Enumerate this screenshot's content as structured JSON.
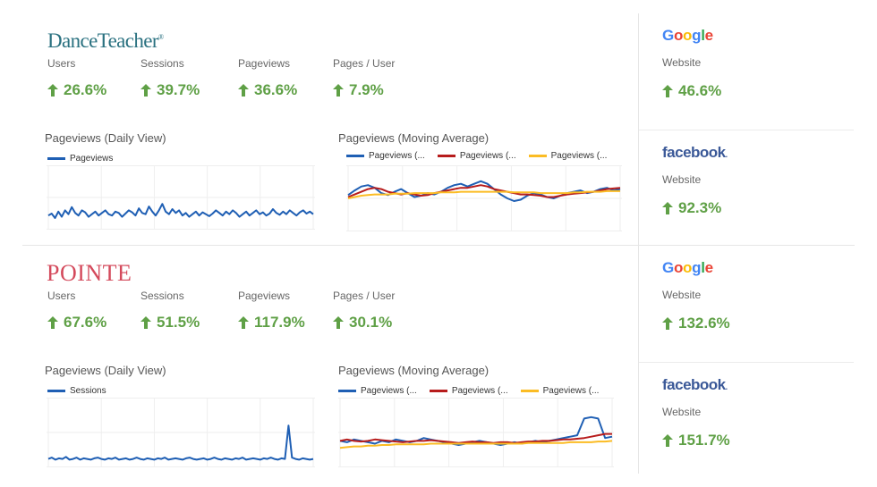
{
  "colors": {
    "positive": "#5fa046",
    "blue": "#1f5fb4",
    "red": "#b71c1c",
    "yellow": "#fbbc24",
    "dance_teacher": "#2a7180",
    "pointe": "#d44a5c",
    "facebook": "#3b5998"
  },
  "sections": [
    {
      "brand": "DanceTeacher",
      "metrics": [
        {
          "label": "Users",
          "value": "26.6%",
          "icon": "arrow-up-icon"
        },
        {
          "label": "Sessions",
          "value": "39.7%",
          "icon": "arrow-up-icon"
        },
        {
          "label": "Pageviews",
          "value": "36.6%",
          "icon": "arrow-up-icon"
        },
        {
          "label": "Pages / User",
          "value": "7.9%",
          "icon": "arrow-up-icon"
        }
      ],
      "daily_title": "Pageviews (Daily View)",
      "daily_legend": "Pageviews",
      "ma_title": "Pageviews (Moving Average)",
      "ma_legend": [
        "Pageviews (...",
        "Pageviews (...",
        "Pageviews (..."
      ],
      "sources": [
        {
          "name": "Google",
          "label": "Website",
          "value": "46.6%"
        },
        {
          "name": "facebook",
          "label": "Website",
          "value": "92.3%"
        }
      ]
    },
    {
      "brand": "POINTE",
      "metrics": [
        {
          "label": "Users",
          "value": "67.6%",
          "icon": "arrow-up-icon"
        },
        {
          "label": "Sessions",
          "value": "51.5%",
          "icon": "arrow-up-icon"
        },
        {
          "label": "Pageviews",
          "value": "117.9%",
          "icon": "arrow-up-icon"
        },
        {
          "label": "Pages / User",
          "value": "30.1%",
          "icon": "arrow-up-icon"
        }
      ],
      "daily_title": "Pageviews (Daily View)",
      "daily_legend": "Sessions",
      "ma_title": "Pageviews (Moving Average)",
      "ma_legend": [
        "Pageviews (...",
        "Pageviews (...",
        "Pageviews (..."
      ],
      "sources": [
        {
          "name": "Google",
          "label": "Website",
          "value": "132.6%"
        },
        {
          "name": "facebook",
          "label": "Website",
          "value": "151.7%"
        }
      ]
    }
  ],
  "chart_data": [
    {
      "type": "line",
      "title": "Pageviews (Daily View)",
      "xlabel": "",
      "ylabel": "",
      "ylim": [
        0,
        100
      ],
      "grid": true,
      "legend_position": "top-left",
      "series": [
        {
          "name": "Pageviews",
          "values": [
            22,
            25,
            18,
            28,
            20,
            30,
            24,
            35,
            26,
            22,
            30,
            27,
            20,
            24,
            28,
            22,
            26,
            30,
            24,
            22,
            28,
            26,
            20,
            25,
            30,
            27,
            22,
            33,
            26,
            24,
            36,
            28,
            22,
            30,
            40,
            28,
            24,
            32,
            26,
            30,
            22,
            26,
            20,
            24,
            28,
            22,
            27,
            24,
            21,
            25,
            30,
            26,
            22,
            28,
            24,
            30,
            26,
            20,
            24,
            28,
            22,
            26,
            30,
            24,
            27,
            22,
            25,
            32,
            26,
            23,
            28,
            24,
            30,
            26,
            22,
            27,
            30,
            25,
            28,
            24
          ]
        }
      ]
    },
    {
      "type": "line",
      "title": "Pageviews (Moving Average)",
      "xlabel": "",
      "ylabel": "",
      "ylim": [
        0,
        100
      ],
      "grid": true,
      "legend_position": "top",
      "series": [
        {
          "name": "Pageviews (...",
          "values": [
            55,
            62,
            68,
            70,
            66,
            58,
            55,
            60,
            64,
            58,
            52,
            54,
            58,
            56,
            60,
            66,
            70,
            72,
            68,
            72,
            76,
            72,
            64,
            56,
            50,
            46,
            48,
            54,
            58,
            56,
            52,
            50,
            54,
            58,
            60,
            62,
            58,
            60,
            64,
            66,
            62,
            64
          ]
        },
        {
          "name": "Pageviews (...",
          "values": [
            52,
            56,
            60,
            64,
            66,
            64,
            60,
            58,
            56,
            58,
            56,
            54,
            55,
            58,
            60,
            62,
            64,
            66,
            66,
            68,
            70,
            68,
            64,
            62,
            60,
            58,
            56,
            56,
            55,
            54,
            52,
            52,
            54,
            56,
            57,
            58,
            59,
            60,
            62,
            64,
            65,
            66
          ]
        },
        {
          "name": "Pageviews (...",
          "values": [
            50,
            52,
            54,
            55,
            56,
            56,
            56,
            57,
            57,
            57,
            58,
            58,
            58,
            58,
            59,
            59,
            59,
            60,
            60,
            60,
            60,
            60,
            60,
            60,
            60,
            59,
            59,
            59,
            59,
            58,
            58,
            58,
            58,
            58,
            59,
            59,
            60,
            60,
            60,
            61,
            61,
            61
          ]
        }
      ]
    },
    {
      "type": "line",
      "title": "Pageviews (Daily View)",
      "xlabel": "",
      "ylabel": "",
      "ylim": [
        0,
        100
      ],
      "grid": true,
      "legend_position": "top-left",
      "series": [
        {
          "name": "Sessions",
          "values": [
            12,
            14,
            11,
            13,
            12,
            15,
            11,
            12,
            14,
            11,
            13,
            12,
            11,
            13,
            14,
            12,
            11,
            13,
            12,
            14,
            11,
            12,
            13,
            11,
            12,
            14,
            12,
            11,
            13,
            12,
            11,
            13,
            12,
            14,
            11,
            12,
            13,
            12,
            11,
            13,
            14,
            12,
            11,
            12,
            13,
            11,
            12,
            14,
            12,
            11,
            13,
            12,
            11,
            13,
            12,
            14,
            11,
            12,
            13,
            12,
            11,
            13,
            12,
            14,
            12,
            11,
            13,
            12,
            60,
            14,
            12,
            11,
            13,
            12,
            11,
            12
          ]
        }
      ]
    },
    {
      "type": "line",
      "title": "Pageviews (Moving Average)",
      "xlabel": "",
      "ylabel": "",
      "ylim": [
        0,
        100
      ],
      "grid": true,
      "legend_position": "top",
      "series": [
        {
          "name": "Pageviews (...",
          "values": [
            38,
            36,
            40,
            38,
            36,
            34,
            38,
            36,
            40,
            38,
            36,
            38,
            42,
            40,
            38,
            36,
            34,
            32,
            34,
            36,
            38,
            36,
            34,
            32,
            34,
            36,
            34,
            36,
            38,
            36,
            38,
            40,
            42,
            44,
            46,
            70,
            72,
            70,
            42,
            44
          ]
        },
        {
          "name": "Pageviews (...",
          "values": [
            38,
            40,
            38,
            37,
            38,
            40,
            39,
            38,
            37,
            36,
            37,
            38,
            38,
            39,
            38,
            37,
            36,
            35,
            36,
            37,
            36,
            36,
            35,
            36,
            36,
            35,
            36,
            37,
            37,
            38,
            38,
            39,
            40,
            40,
            41,
            42,
            44,
            46,
            48,
            48
          ]
        },
        {
          "name": "Pageviews (...",
          "values": [
            28,
            29,
            30,
            30,
            31,
            31,
            32,
            32,
            33,
            33,
            33,
            33,
            33,
            34,
            34,
            34,
            34,
            34,
            34,
            34,
            34,
            34,
            34,
            34,
            34,
            34,
            34,
            35,
            35,
            35,
            35,
            35,
            35,
            36,
            36,
            36,
            36,
            37,
            37,
            38
          ]
        }
      ]
    }
  ]
}
